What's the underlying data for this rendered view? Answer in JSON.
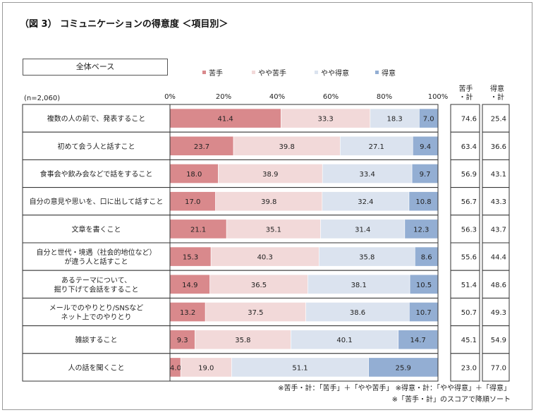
{
  "title": "（図 3） コミュニケーションの得意度 ＜項目別＞",
  "base_label": "全体ベース",
  "n_label": "(n=2,060)",
  "footnotes": [
    "※苦手・計：「苦手」＋「やや苦手」 ※得意・計：「やや得意」＋「得意」",
    "※「苦手・計」のスコアで降順ソート"
  ],
  "colors": {
    "苦手": "#d9898c",
    "やや苦手": "#f2d9d9",
    "やや得意": "#dbe3ef",
    "得意": "#93aed3"
  },
  "chart_data": {
    "type": "bar",
    "orientation": "horizontal",
    "stacked": true,
    "xlim": [
      0,
      100
    ],
    "x_ticks": [
      "0%",
      "20%",
      "40%",
      "60%",
      "80%",
      "100%"
    ],
    "categories": [
      "複数の人の前で、発表すること",
      "初めて会う人と話すこと",
      "食事会や飲み会などで話をすること",
      "自分の意見や思いを、口に出して話すこと",
      "文章を書くこと",
      "自分と世代・境遇（社会的地位など）\nが違う人と話すこと",
      "あるテーマについて、\n掘り下げて会話をすること",
      "メールでのやりとり/SNSなど\nネット上でのやりとり",
      "雑談すること",
      "人の話を聞くこと"
    ],
    "series": [
      {
        "name": "苦手",
        "values": [
          41.4,
          23.7,
          18.0,
          17.0,
          21.1,
          15.3,
          14.9,
          13.2,
          9.3,
          4.0
        ]
      },
      {
        "name": "やや苦手",
        "values": [
          33.3,
          39.8,
          38.9,
          39.8,
          35.1,
          40.3,
          36.5,
          37.5,
          35.8,
          19.0
        ]
      },
      {
        "name": "やや得意",
        "values": [
          18.3,
          27.1,
          33.4,
          32.4,
          31.4,
          35.8,
          38.1,
          38.6,
          40.1,
          51.1
        ]
      },
      {
        "name": "得意",
        "values": [
          7.0,
          9.4,
          9.7,
          10.8,
          12.3,
          8.6,
          10.5,
          10.7,
          14.7,
          25.9
        ]
      }
    ],
    "summary_columns": [
      {
        "header": "苦手\n・計",
        "values": [
          "74.6",
          "63.4",
          "56.9",
          "56.7",
          "56.3",
          "55.6",
          "51.4",
          "50.7",
          "45.1",
          "23.0"
        ]
      },
      {
        "header": "得意\n・計",
        "values": [
          "25.4",
          "36.6",
          "43.1",
          "43.3",
          "43.7",
          "44.4",
          "48.6",
          "49.3",
          "54.9",
          "77.0"
        ]
      }
    ],
    "value_labels": [
      [
        "41.4",
        "33.3",
        "18.3",
        "7.0"
      ],
      [
        "23.7",
        "39.8",
        "27.1",
        "9.4"
      ],
      [
        "18.0",
        "38.9",
        "33.4",
        "9.7"
      ],
      [
        "17.0",
        "39.8",
        "32.4",
        "10.8"
      ],
      [
        "21.1",
        "35.1",
        "31.4",
        "12.3"
      ],
      [
        "15.3",
        "40.3",
        "35.8",
        "8.6"
      ],
      [
        "14.9",
        "36.5",
        "38.1",
        "10.5"
      ],
      [
        "13.2",
        "37.5",
        "38.6",
        "10.7"
      ],
      [
        "9.3",
        "35.8",
        "40.1",
        "14.7"
      ],
      [
        "4.0",
        "19.0",
        "51.1",
        "25.9"
      ]
    ],
    "legend_position": "top",
    "grid": false
  }
}
